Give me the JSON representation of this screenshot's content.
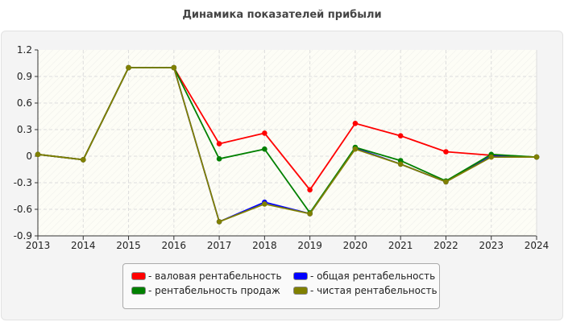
{
  "chart_data": {
    "type": "line",
    "title": "Динамика показателей прибыли",
    "xlabel": "",
    "ylabel": "",
    "x": [
      2013,
      2014,
      2015,
      2016,
      2017,
      2018,
      2019,
      2020,
      2021,
      2022,
      2023,
      2024
    ],
    "ylim": [
      -0.9,
      1.2
    ],
    "yticks": [
      "1.2",
      "0.9",
      "0.6",
      "0.3",
      "0",
      "-0.3",
      "-0.6",
      "-0.9"
    ],
    "grid": true,
    "legend_position": "bottom",
    "series": [
      {
        "name": "валовая рентабельность",
        "color": "#ff0000",
        "values": [
          0.02,
          -0.04,
          1,
          1,
          0.14,
          0.26,
          -0.38,
          0.37,
          0.23,
          0.05,
          0.01,
          -0.01
        ]
      },
      {
        "name": "общая рентабельность",
        "color": "#0000ff",
        "values": [
          0.02,
          -0.04,
          1,
          1,
          -0.74,
          -0.52,
          -0.65,
          0.09,
          -0.09,
          -0.29,
          0,
          -0.01
        ]
      },
      {
        "name": "рентабельность продаж",
        "color": "#008000",
        "values": [
          0.02,
          -0.04,
          1,
          1,
          -0.03,
          0.08,
          -0.64,
          0.1,
          -0.05,
          -0.28,
          0.02,
          -0.01
        ]
      },
      {
        "name": "чистая рентабельность",
        "color": "#808000",
        "values": [
          0.02,
          -0.04,
          1,
          1,
          -0.74,
          -0.54,
          -0.65,
          0.08,
          -0.09,
          -0.29,
          -0.01,
          -0.01
        ]
      }
    ]
  },
  "legend": {
    "items": [
      {
        "label": "- валовая рентабельность",
        "color": "#ff0000"
      },
      {
        "label": "- общая рентабельность",
        "color": "#0000ff"
      },
      {
        "label": "- рентабельность продаж",
        "color": "#008000"
      },
      {
        "label": "- чистая рентабельность",
        "color": "#808000"
      }
    ]
  }
}
